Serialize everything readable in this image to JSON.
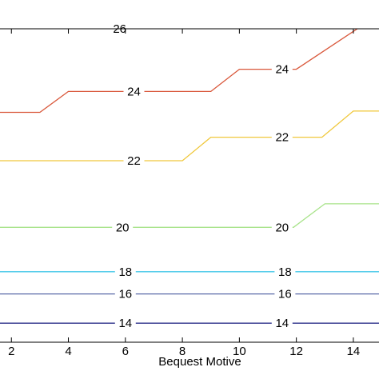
{
  "chart_data": {
    "type": "line",
    "title": "",
    "xlabel": "Bequest Motive",
    "ylabel": "",
    "xlim": [
      1.6,
      14.9
    ],
    "ylim": [
      0,
      12
    ],
    "x_ticks": [
      2,
      4,
      6,
      8,
      10,
      12,
      14
    ],
    "grid": false,
    "legend": "none",
    "series": [
      {
        "label": "14",
        "color": "#2b2f8a",
        "points": [
          [
            1.6,
            0.73
          ],
          [
            14.9,
            0.73
          ]
        ],
        "label_positions": [
          6,
          11.5
        ]
      },
      {
        "label": "16",
        "color": "#5a6aa8",
        "points": [
          [
            1.6,
            1.85
          ],
          [
            14.9,
            1.85
          ]
        ],
        "label_positions": [
          6,
          11.6
        ]
      },
      {
        "label": "18",
        "color": "#3ec6e8",
        "points": [
          [
            1.6,
            2.7
          ],
          [
            14.9,
            2.7
          ]
        ],
        "label_positions": [
          6,
          11.6
        ]
      },
      {
        "label": "20",
        "color": "#a8e38a",
        "points": [
          [
            1.6,
            4.4
          ],
          [
            11.9,
            4.4
          ],
          [
            13,
            5.3
          ],
          [
            14.9,
            5.3
          ]
        ],
        "label_positions": [
          5.9,
          11.5
        ]
      },
      {
        "label": "22",
        "color": "#f0c83c",
        "points": [
          [
            1.6,
            6.95
          ],
          [
            8,
            6.95
          ],
          [
            9,
            7.85
          ],
          [
            12.9,
            7.85
          ],
          [
            14,
            8.85
          ],
          [
            14.9,
            8.85
          ]
        ],
        "label_positions": [
          6.3,
          11.5
        ]
      },
      {
        "label": "24",
        "color": "#d9573a",
        "points": [
          [
            1.6,
            8.8
          ],
          [
            3,
            8.8
          ],
          [
            4,
            9.6
          ],
          [
            9,
            9.6
          ],
          [
            10,
            10.45
          ],
          [
            12,
            10.45
          ],
          [
            14.9,
            12.55
          ]
        ],
        "label_positions": [
          6.3,
          11.5
        ]
      },
      {
        "label": "26",
        "color": "#d9573a",
        "points": [],
        "label_positions": [
          5.8
        ]
      }
    ]
  }
}
